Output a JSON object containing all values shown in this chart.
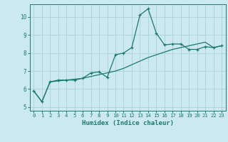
{
  "xlabel": "Humidex (Indice chaleur)",
  "ylabel": "",
  "bg_color": "#cce9f0",
  "grid_color": "#aed4dc",
  "line_color": "#1a7a6e",
  "xlim": [
    -0.5,
    23.5
  ],
  "ylim": [
    4.8,
    10.7
  ],
  "xticks": [
    0,
    1,
    2,
    3,
    4,
    5,
    6,
    7,
    8,
    9,
    10,
    11,
    12,
    13,
    14,
    15,
    16,
    17,
    18,
    19,
    20,
    21,
    22,
    23
  ],
  "yticks": [
    5,
    6,
    7,
    8,
    9,
    10
  ],
  "line1_x": [
    0,
    1,
    2,
    3,
    4,
    5,
    6,
    7,
    8,
    9,
    10,
    11,
    12,
    13,
    14,
    15,
    16,
    17,
    18,
    19,
    20,
    21,
    22,
    23
  ],
  "line1_y": [
    5.9,
    5.3,
    6.4,
    6.5,
    6.5,
    6.5,
    6.6,
    6.9,
    6.95,
    6.65,
    7.9,
    8.0,
    8.3,
    10.1,
    10.45,
    9.1,
    8.45,
    8.5,
    8.5,
    8.2,
    8.2,
    8.35,
    8.3,
    8.4
  ],
  "line2_x": [
    0,
    1,
    2,
    3,
    4,
    5,
    6,
    7,
    8,
    9,
    10,
    11,
    12,
    13,
    14,
    15,
    16,
    17,
    18,
    19,
    20,
    21,
    22,
    23
  ],
  "line2_y": [
    5.9,
    5.3,
    6.4,
    6.45,
    6.5,
    6.55,
    6.6,
    6.7,
    6.8,
    6.9,
    7.0,
    7.15,
    7.35,
    7.55,
    7.75,
    7.9,
    8.05,
    8.2,
    8.3,
    8.4,
    8.5,
    8.6,
    8.3,
    8.4
  ]
}
